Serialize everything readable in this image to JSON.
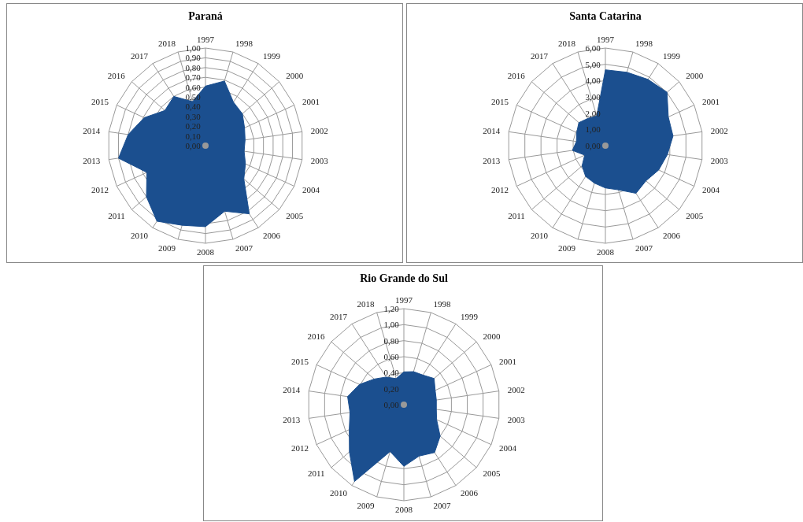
{
  "chart_data": [
    {
      "type": "radar",
      "title": "Paraná",
      "categories": [
        "1997",
        "1998",
        "1999",
        "2000",
        "2001",
        "2002",
        "2003",
        "2004",
        "2005",
        "2006",
        "2007",
        "2008",
        "2009",
        "2010",
        "2011",
        "2012",
        "2013",
        "2014",
        "2015",
        "2016",
        "2017",
        "2018"
      ],
      "series": [
        {
          "color": "#1b4f8f",
          "values": [
            0.61,
            0.69,
            0.53,
            0.5,
            0.44,
            0.41,
            0.4,
            0.45,
            0.52,
            0.83,
            0.7,
            0.83,
            0.85,
            0.92,
            0.8,
            0.66,
            0.9,
            0.8,
            0.69,
            0.55,
            0.6,
            0.47
          ]
        }
      ],
      "ylim": [
        0,
        1
      ],
      "yticks": [
        {
          "value": 0,
          "label": "0,00"
        },
        {
          "value": 0.1,
          "label": "0,10"
        },
        {
          "value": 0.2,
          "label": "0,20"
        },
        {
          "value": 0.3,
          "label": "0,30"
        },
        {
          "value": 0.4,
          "label": "0,40"
        },
        {
          "value": 0.5,
          "label": "0,50"
        },
        {
          "value": 0.6,
          "label": "0,60"
        },
        {
          "value": 0.7,
          "label": "0,70"
        },
        {
          "value": 0.8,
          "label": "0,80"
        },
        {
          "value": 0.9,
          "label": "0,90"
        },
        {
          "value": 1,
          "label": "1,00"
        }
      ],
      "grid": true
    },
    {
      "type": "radar",
      "title": "Santa Catarina",
      "categories": [
        "1997",
        "1998",
        "1999",
        "2000",
        "2001",
        "2002",
        "2003",
        "2004",
        "2005",
        "2006",
        "2007",
        "2008",
        "2009",
        "2010",
        "2011",
        "2012",
        "2013",
        "2014",
        "2015",
        "2016",
        "2017",
        "2018"
      ],
      "series": [
        {
          "color": "#1b4f8f",
          "values": [
            4.66,
            4.7,
            4.84,
            5.01,
            4.25,
            4.2,
            3.85,
            3.6,
            3.3,
            3.48,
            2.83,
            2.6,
            2.4,
            2.25,
            1.9,
            1.4,
            2.05,
            1.8,
            1.94,
            2.16,
            1.99,
            1.9
          ]
        }
      ],
      "ylim": [
        0,
        6
      ],
      "yticks": [
        {
          "value": 0,
          "label": "0,00"
        },
        {
          "value": 1,
          "label": "1,00"
        },
        {
          "value": 2,
          "label": "2,00"
        },
        {
          "value": 3,
          "label": "3,00"
        },
        {
          "value": 4,
          "label": "4,00"
        },
        {
          "value": 5,
          "label": "5,00"
        },
        {
          "value": 6,
          "label": "6,00"
        }
      ],
      "grid": true
    },
    {
      "type": "radar",
      "title": "Rio Grande do Sul",
      "categories": [
        "1997",
        "1998",
        "1999",
        "2000",
        "2001",
        "2002",
        "2003",
        "2004",
        "2005",
        "2006",
        "2007",
        "2008",
        "2009",
        "2010",
        "2011",
        "2012",
        "2013",
        "2014",
        "2015",
        "2016",
        "2017",
        "2018"
      ],
      "series": [
        {
          "color": "#1b4f8f",
          "values": [
            0.41,
            0.43,
            0.44,
            0.5,
            0.43,
            0.41,
            0.41,
            0.45,
            0.6,
            0.71,
            0.67,
            0.77,
            0.61,
            1.14,
            0.9,
            0.75,
            0.68,
            0.71,
            0.61,
            0.49,
            0.41,
            0.34
          ]
        }
      ],
      "ylim": [
        0,
        1.2
      ],
      "yticks": [
        {
          "value": 0,
          "label": "0,00"
        },
        {
          "value": 0.2,
          "label": "0,20"
        },
        {
          "value": 0.4,
          "label": "0,40"
        },
        {
          "value": 0.6,
          "label": "0,60"
        },
        {
          "value": 0.8,
          "label": "0,80"
        },
        {
          "value": 1,
          "label": "1,00"
        },
        {
          "value": 1.2,
          "label": "1,20"
        }
      ],
      "grid": true
    }
  ]
}
